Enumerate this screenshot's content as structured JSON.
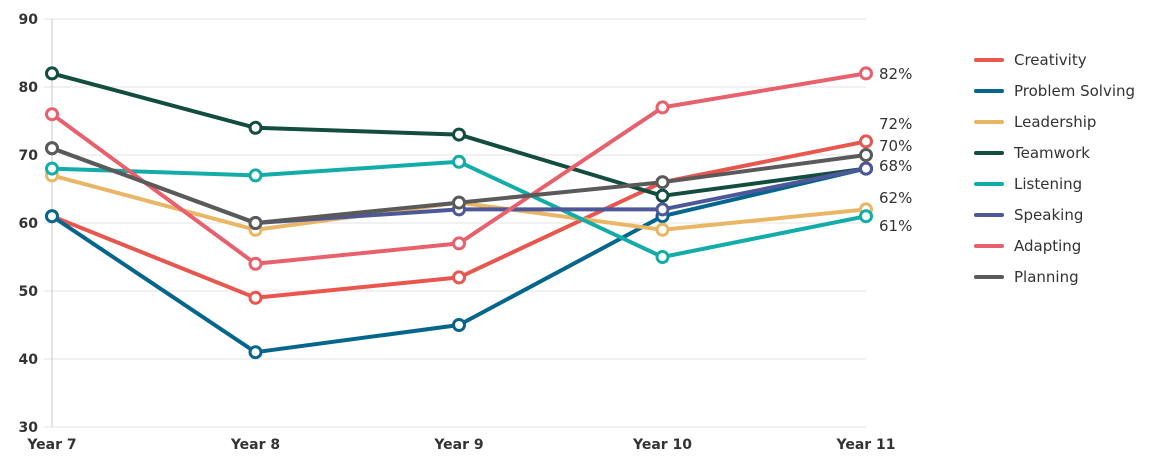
{
  "chart_data": {
    "type": "line",
    "x": [
      "Year 7",
      "Year 8",
      "Year 9",
      "Year 10",
      "Year 11"
    ],
    "ylim": [
      30,
      90
    ],
    "yticks": [
      30,
      40,
      50,
      60,
      70,
      80,
      90
    ],
    "grid": "horizontal",
    "legend_position": "right",
    "series": [
      {
        "name": "Creativity",
        "color": "#e8564e",
        "values": [
          61,
          49,
          52,
          66,
          72
        ]
      },
      {
        "name": "Problem Solving",
        "color": "#05668d",
        "values": [
          61,
          41,
          45,
          61,
          68
        ]
      },
      {
        "name": "Leadership",
        "color": "#e8b665",
        "values": [
          67,
          59,
          63,
          59,
          62
        ]
      },
      {
        "name": "Teamwork",
        "color": "#124d3f",
        "values": [
          82,
          74,
          73,
          64,
          68
        ]
      },
      {
        "name": "Listening",
        "color": "#13aca8",
        "values": [
          68,
          67,
          69,
          55,
          61
        ]
      },
      {
        "name": "Speaking",
        "color": "#4e5797",
        "values": [
          71,
          60,
          62,
          62,
          68
        ]
      },
      {
        "name": "Adapting",
        "color": "#e8606c",
        "values": [
          76,
          54,
          57,
          77,
          82
        ]
      },
      {
        "name": "Planning",
        "color": "#5a5a5a",
        "values": [
          71,
          60,
          63,
          66,
          70
        ]
      }
    ],
    "end_labels": [
      "82%",
      "72%",
      "70%",
      "68%",
      "62%",
      "61%"
    ]
  }
}
